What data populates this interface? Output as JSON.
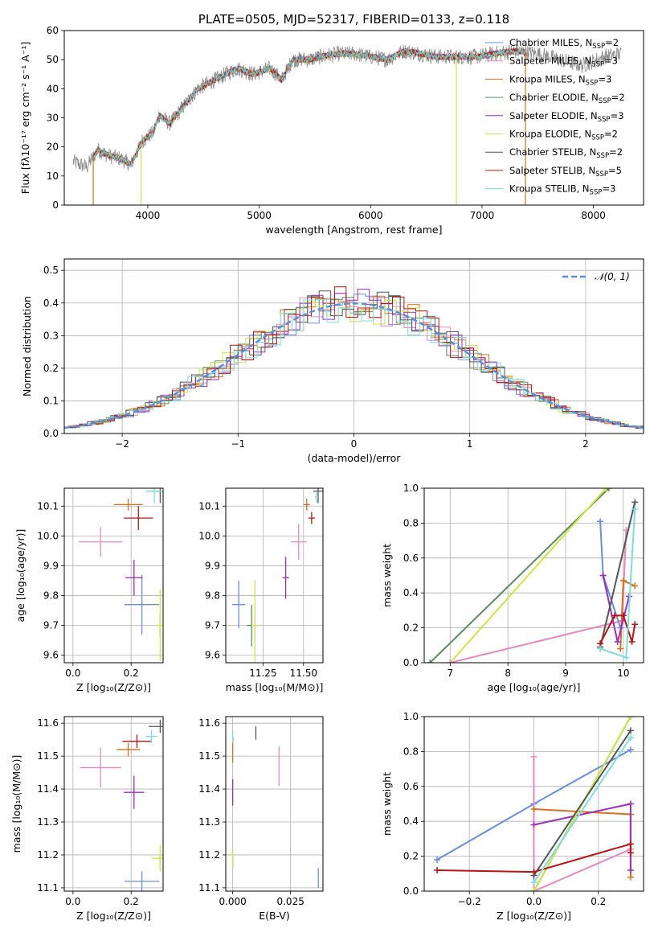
{
  "chart_data": [
    {
      "id": "spectrum",
      "type": "line",
      "title": "PLATE=0505, MJD=52317, FIBERID=0133, z=0.118",
      "xlabel": "wavelength [Angstrom, rest frame]",
      "ylabel": "Flux [fλ10⁻¹⁷ erg cm⁻² s⁻¹ A⁻¹]",
      "xlim": [
        3250,
        8450
      ],
      "ylim": [
        0,
        60
      ],
      "xticks": [
        4000,
        5000,
        6000,
        7000,
        8000
      ],
      "yticks": [
        0,
        10,
        20,
        30,
        40,
        50,
        60
      ],
      "legend_position": "upper-right",
      "data_continuum": [
        [
          3330,
          15
        ],
        [
          3450,
          13
        ],
        [
          3550,
          19
        ],
        [
          3650,
          17
        ],
        [
          3750,
          16
        ],
        [
          3850,
          14
        ],
        [
          3950,
          22
        ],
        [
          4050,
          25
        ],
        [
          4100,
          31
        ],
        [
          4200,
          28
        ],
        [
          4300,
          33
        ],
        [
          4450,
          40
        ],
        [
          4550,
          42
        ],
        [
          4650,
          44
        ],
        [
          4800,
          47
        ],
        [
          4950,
          45
        ],
        [
          5100,
          47
        ],
        [
          5200,
          43
        ],
        [
          5300,
          50
        ],
        [
          5450,
          50
        ],
        [
          5550,
          51
        ],
        [
          5700,
          52
        ],
        [
          5850,
          52
        ],
        [
          6000,
          51
        ],
        [
          6150,
          50
        ],
        [
          6300,
          53
        ],
        [
          6450,
          52
        ],
        [
          6600,
          51
        ],
        [
          6800,
          51
        ],
        [
          6950,
          51
        ],
        [
          7100,
          52
        ],
        [
          7300,
          53
        ],
        [
          7500,
          52
        ],
        [
          7700,
          50
        ],
        [
          7900,
          48
        ],
        [
          8100,
          51
        ],
        [
          8250,
          52
        ]
      ],
      "model_drops": [
        {
          "series": "Kroupa MILES",
          "x": 3510
        },
        {
          "series": "Kroupa ELODIE",
          "x": 3940
        },
        {
          "series": "Kroupa ELODIE",
          "x": 6770
        },
        {
          "series": "Kroupa MILES",
          "x": 7390
        }
      ],
      "model_start_x": 3510,
      "model_end_x": 7400,
      "series": [
        {
          "name": "Chabrier MILES, N_SSP=2",
          "label_main": "Chabrier MILES, N",
          "label_sub": "SSP",
          "label_tail": "=2",
          "color": "#6a8fd8"
        },
        {
          "name": "Salpeter MILES, N_SSP=3",
          "label_main": "Salpeter MILES, N",
          "label_sub": "SSP",
          "label_tail": "=3",
          "color": "#e58ac0"
        },
        {
          "name": "Kroupa MILES, N_SSP=3",
          "label_main": "Kroupa MILES, N",
          "label_sub": "SSP",
          "label_tail": "=3",
          "color": "#d8701f"
        },
        {
          "name": "Chabrier ELODIE, N_SSP=2",
          "label_main": "Chabrier ELODIE, N",
          "label_sub": "SSP",
          "label_tail": "=2",
          "color": "#5e8a60"
        },
        {
          "name": "Salpeter ELODIE, N_SSP=3",
          "label_main": "Salpeter ELODIE, N",
          "label_sub": "SSP",
          "label_tail": "=3",
          "color": "#9a2fb8"
        },
        {
          "name": "Kroupa ELODIE, N_SSP=2",
          "label_main": "Kroupa ELODIE, N",
          "label_sub": "SSP",
          "label_tail": "=2",
          "color": "#cde64a"
        },
        {
          "name": "Chabrier STELIB, N_SSP=2",
          "label_main": "Chabrier STELIB, N",
          "label_sub": "SSP",
          "label_tail": "=2",
          "color": "#555555"
        },
        {
          "name": "Salpeter STELIB, N_SSP=5",
          "label_main": "Salpeter STELIB, N",
          "label_sub": "SSP",
          "label_tail": "=5",
          "color": "#b81414"
        },
        {
          "name": "Kroupa STELIB, N_SSP=3",
          "label_main": "Kroupa STELIB, N",
          "label_sub": "SSP",
          "label_tail": "=3",
          "color": "#7fdcdc"
        }
      ]
    },
    {
      "id": "residuals",
      "type": "step",
      "xlabel": "(data-model)/error",
      "ylabel": "Normed distribution",
      "xlim": [
        -2.5,
        2.5
      ],
      "ylim": [
        0,
        0.535
      ],
      "xticks": [
        -2,
        -1,
        0,
        1,
        2
      ],
      "yticks": [
        0.0,
        0.1,
        0.2,
        0.3,
        0.4,
        0.5
      ],
      "grid": true,
      "legend_position": "upper-right",
      "reference_curve": {
        "label": "𝒩(0, 1)",
        "mu": 0,
        "sigma": 1,
        "color": "#5b8bd8",
        "dashed": true
      },
      "bin_width": 0.1,
      "hist_colors": [
        "#6a8fd8",
        "#e58ac0",
        "#d8701f",
        "#5e8a60",
        "#9a2fb8",
        "#cde64a",
        "#555555",
        "#b81414",
        "#7fdcdc"
      ],
      "bin_edges_range": [
        -2.5,
        2.5
      ]
    },
    {
      "id": "age_vs_Z",
      "type": "scatter",
      "xlabel": "Z [log₁₀(Z/Z⊙)]",
      "ylabel": "age  [log₁₀(age/yr)]",
      "xlim": [
        -0.03,
        0.31
      ],
      "ylim": [
        9.575,
        10.16
      ],
      "xticks": [
        0.0,
        0.2
      ],
      "yticks": [
        9.6,
        9.7,
        9.8,
        9.9,
        10.0,
        10.1
      ],
      "points": [
        {
          "series": "Chabrier MILES",
          "x": 0.237,
          "y": 9.77,
          "xerr": 0.06,
          "yerr": 0.1
        },
        {
          "series": "Salpeter MILES",
          "x": 0.095,
          "y": 9.98,
          "xerr": 0.075,
          "yerr": 0.05
        },
        {
          "series": "Kroupa MILES",
          "x": 0.19,
          "y": 10.105,
          "xerr": 0.05,
          "yerr": 0.02
        },
        {
          "series": "Chabrier ELODIE",
          "x": 0.3,
          "y": 9.7,
          "xerr": 0.0,
          "yerr": 0.04
        },
        {
          "series": "Salpeter ELODIE",
          "x": 0.21,
          "y": 9.86,
          "xerr": 0.03,
          "yerr": 0.06
        },
        {
          "series": "Kroupa ELODIE",
          "x": 0.3,
          "y": 9.7,
          "xerr": 0.015,
          "yerr": 0.12
        },
        {
          "series": "Chabrier STELIB",
          "x": 0.3,
          "y": 10.15,
          "xerr": 0.04,
          "yerr": 0.04
        },
        {
          "series": "Salpeter STELIB",
          "x": 0.225,
          "y": 10.06,
          "xerr": 0.05,
          "yerr": 0.04
        },
        {
          "series": "Kroupa STELIB",
          "x": 0.28,
          "y": 10.15,
          "xerr": 0.03,
          "yerr": 0.04
        }
      ]
    },
    {
      "id": "age_vs_mass",
      "type": "scatter",
      "xlabel": "mass [log₁₀(M/M⊙)]",
      "ylabel": "",
      "xlim": [
        11.02,
        11.62
      ],
      "ylim": [
        9.575,
        10.16
      ],
      "xticks": [
        11.25,
        11.5
      ],
      "yticks": [
        9.6,
        9.7,
        9.8,
        9.9,
        10.0,
        10.1
      ],
      "points": [
        {
          "series": "Chabrier MILES",
          "x": 11.1,
          "y": 9.77,
          "xerr": 0.04,
          "yerr": 0.08
        },
        {
          "series": "Salpeter MILES",
          "x": 11.47,
          "y": 9.98,
          "xerr": 0.05,
          "yerr": 0.06
        },
        {
          "series": "Kroupa MILES",
          "x": 11.52,
          "y": 10.105,
          "xerr": 0.02,
          "yerr": 0.02
        },
        {
          "series": "Chabrier ELODIE",
          "x": 11.18,
          "y": 9.7,
          "xerr": 0.03,
          "yerr": 0.07
        },
        {
          "series": "Salpeter ELODIE",
          "x": 11.39,
          "y": 9.86,
          "xerr": 0.02,
          "yerr": 0.07
        },
        {
          "series": "Kroupa ELODIE",
          "x": 11.2,
          "y": 9.7,
          "xerr": 0.02,
          "yerr": 0.15
        },
        {
          "series": "Chabrier STELIB",
          "x": 11.59,
          "y": 10.15,
          "xerr": 0.03,
          "yerr": 0.04
        },
        {
          "series": "Salpeter STELIB",
          "x": 11.55,
          "y": 10.06,
          "xerr": 0.02,
          "yerr": 0.02
        },
        {
          "series": "Kroupa STELIB",
          "x": 11.58,
          "y": 10.13,
          "xerr": 0.01,
          "yerr": 0.02
        }
      ]
    },
    {
      "id": "weight_vs_age",
      "type": "line",
      "xlabel": "age  [log₁₀(age/yr)]",
      "ylabel": "mass weight",
      "xlim": [
        6.55,
        10.35
      ],
      "ylim": [
        0.0,
        1.0
      ],
      "xticks": [
        7,
        8,
        9,
        10
      ],
      "yticks": [
        0.0,
        0.2,
        0.4,
        0.6,
        0.8,
        1.0
      ],
      "series": [
        {
          "name": "Chabrier ELODIE",
          "color": "#5e8a60",
          "points": [
            [
              6.65,
              0.0
            ],
            [
              9.75,
              1.0
            ]
          ]
        },
        {
          "name": "Kroupa ELODIE",
          "color": "#cde64a",
          "points": [
            [
              7.0,
              0.0
            ],
            [
              9.7,
              1.0
            ]
          ]
        },
        {
          "name": "Salpeter MILES",
          "color": "#e58ac0",
          "points": [
            [
              7.0,
              0.0
            ],
            [
              9.98,
              0.24
            ],
            [
              10.05,
              0.76
            ]
          ]
        },
        {
          "name": "Chabrier MILES",
          "color": "#6a8fd8",
          "points": [
            [
              9.6,
              0.81
            ],
            [
              9.65,
              0.5
            ],
            [
              9.95,
              0.2
            ]
          ]
        },
        {
          "name": "Kroupa MILES",
          "color": "#d8701f",
          "points": [
            [
              9.95,
              0.08
            ],
            [
              10.0,
              0.47
            ],
            [
              10.2,
              0.44
            ]
          ]
        },
        {
          "name": "Salpeter ELODIE",
          "color": "#9a2fb8",
          "points": [
            [
              9.65,
              0.5
            ],
            [
              9.9,
              0.12
            ],
            [
              10.1,
              0.38
            ]
          ]
        },
        {
          "name": "Chabrier STELIB",
          "color": "#555555",
          "points": [
            [
              9.6,
              0.09
            ],
            [
              10.2,
              0.92
            ]
          ]
        },
        {
          "name": "Salpeter STELIB",
          "color": "#b81414",
          "points": [
            [
              9.6,
              0.11
            ],
            [
              9.85,
              0.27
            ],
            [
              10.0,
              0.27
            ],
            [
              10.15,
              0.12
            ],
            [
              10.2,
              0.22
            ]
          ]
        },
        {
          "name": "Kroupa STELIB",
          "color": "#7fdcdc",
          "points": [
            [
              9.6,
              0.08
            ],
            [
              10.05,
              0.03
            ],
            [
              10.2,
              0.88
            ]
          ]
        }
      ]
    },
    {
      "id": "mass_vs_Z",
      "type": "scatter",
      "xlabel": "Z [log₁₀(Z/Z⊙)]",
      "ylabel": "mass [log₁₀(M/M⊙)]",
      "xlim": [
        -0.03,
        0.31
      ],
      "ylim": [
        11.09,
        11.62
      ],
      "xticks": [
        0.0,
        0.2
      ],
      "yticks": [
        11.1,
        11.2,
        11.3,
        11.4,
        11.5,
        11.6
      ],
      "points": [
        {
          "series": "Chabrier MILES",
          "x": 0.237,
          "y": 11.12,
          "xerr": 0.06,
          "yerr": 0.03
        },
        {
          "series": "Salpeter MILES",
          "x": 0.095,
          "y": 11.465,
          "xerr": 0.07,
          "yerr": 0.06
        },
        {
          "series": "Kroupa MILES",
          "x": 0.19,
          "y": 11.52,
          "xerr": 0.04,
          "yerr": 0.02
        },
        {
          "series": "Chabrier ELODIE",
          "x": 0.3,
          "y": 11.18,
          "xerr": 0.0,
          "yerr": 0.02
        },
        {
          "series": "Salpeter ELODIE",
          "x": 0.21,
          "y": 11.39,
          "xerr": 0.035,
          "yerr": 0.05
        },
        {
          "series": "Kroupa ELODIE",
          "x": 0.3,
          "y": 11.19,
          "xerr": 0.03,
          "yerr": 0.04
        },
        {
          "series": "Chabrier STELIB",
          "x": 0.3,
          "y": 11.59,
          "xerr": 0.04,
          "yerr": 0.02
        },
        {
          "series": "Salpeter STELIB",
          "x": 0.22,
          "y": 11.545,
          "xerr": 0.05,
          "yerr": 0.02
        },
        {
          "series": "Kroupa STELIB",
          "x": 0.27,
          "y": 11.56,
          "xerr": 0.02,
          "yerr": 0.02
        }
      ]
    },
    {
      "id": "mass_vs_ebv",
      "type": "scatter",
      "xlabel": "E(B-V)",
      "ylabel": "",
      "xlim": [
        -0.003,
        0.039
      ],
      "ylim": [
        11.09,
        11.62
      ],
      "xticks": [
        0.0,
        0.025
      ],
      "yticks": [
        11.1,
        11.2,
        11.3,
        11.4,
        11.5,
        11.6
      ],
      "points": [
        {
          "series": "Chabrier MILES",
          "x": 0.037,
          "y": 11.13,
          "yerr": 0.03
        },
        {
          "series": "Salpeter MILES",
          "x": 0.02,
          "y": 11.47,
          "yerr": 0.06
        },
        {
          "series": "Kroupa MILES",
          "x": 0.0,
          "y": 11.52,
          "yerr": 0.04
        },
        {
          "series": "Chabrier ELODIE",
          "x": 0.0,
          "y": 11.18,
          "yerr": 0.02
        },
        {
          "series": "Salpeter ELODIE",
          "x": 0.0,
          "y": 11.39,
          "yerr": 0.04
        },
        {
          "series": "Kroupa ELODIE",
          "x": 0.0,
          "y": 11.19,
          "yerr": 0.03
        },
        {
          "series": "Chabrier STELIB",
          "x": 0.01,
          "y": 11.57,
          "yerr": 0.02
        },
        {
          "series": "Salpeter STELIB",
          "x": 0.0,
          "y": 11.55,
          "yerr": 0.01
        },
        {
          "series": "Kroupa STELIB",
          "x": 0.0,
          "y": 11.56,
          "yerr": 0.02
        }
      ]
    },
    {
      "id": "weight_vs_Z",
      "type": "line",
      "xlabel": "Z [log₁₀(Z/Z⊙)]",
      "ylabel": "mass weight",
      "xlim": [
        -0.34,
        0.34
      ],
      "ylim": [
        0.0,
        1.0
      ],
      "xticks": [
        -0.2,
        0.0,
        0.2
      ],
      "yticks": [
        0.0,
        0.2,
        0.4,
        0.6,
        0.8,
        1.0
      ],
      "series": [
        {
          "name": "Chabrier MILES",
          "color": "#6a8fd8",
          "points": [
            [
              -0.3,
              0.18
            ],
            [
              0.0,
              0.5
            ],
            [
              0.3,
              0.81
            ]
          ]
        },
        {
          "name": "Salpeter MILES",
          "color": "#e58ac0",
          "points": [
            [
              0.0,
              0.77
            ],
            [
              0.0,
              0.0
            ],
            [
              0.3,
              0.24
            ]
          ]
        },
        {
          "name": "Kroupa MILES",
          "color": "#d8701f",
          "points": [
            [
              0.0,
              0.47
            ],
            [
              0.3,
              0.44
            ],
            [
              0.3,
              0.08
            ]
          ]
        },
        {
          "name": "Chabrier ELODIE",
          "color": "#5e8a60",
          "points": [
            [
              0.0,
              0.0
            ],
            [
              0.3,
              1.0
            ]
          ]
        },
        {
          "name": "Salpeter ELODIE",
          "color": "#9a2fb8",
          "points": [
            [
              0.0,
              0.38
            ],
            [
              0.3,
              0.5
            ],
            [
              0.3,
              0.12
            ]
          ]
        },
        {
          "name": "Kroupa ELODIE",
          "color": "#cde64a",
          "points": [
            [
              0.0,
              0.0
            ],
            [
              0.3,
              1.0
            ]
          ]
        },
        {
          "name": "Chabrier STELIB",
          "color": "#555555",
          "points": [
            [
              0.0,
              0.09
            ],
            [
              0.3,
              0.92
            ]
          ]
        },
        {
          "name": "Salpeter STELIB",
          "color": "#b81414",
          "points": [
            [
              -0.3,
              0.12
            ],
            [
              0.0,
              0.11
            ],
            [
              0.3,
              0.27
            ],
            [
              0.3,
              0.22
            ]
          ]
        },
        {
          "name": "Kroupa STELIB",
          "color": "#7fdcdc",
          "points": [
            [
              0.0,
              0.05
            ],
            [
              0.3,
              0.88
            ]
          ]
        }
      ]
    }
  ]
}
